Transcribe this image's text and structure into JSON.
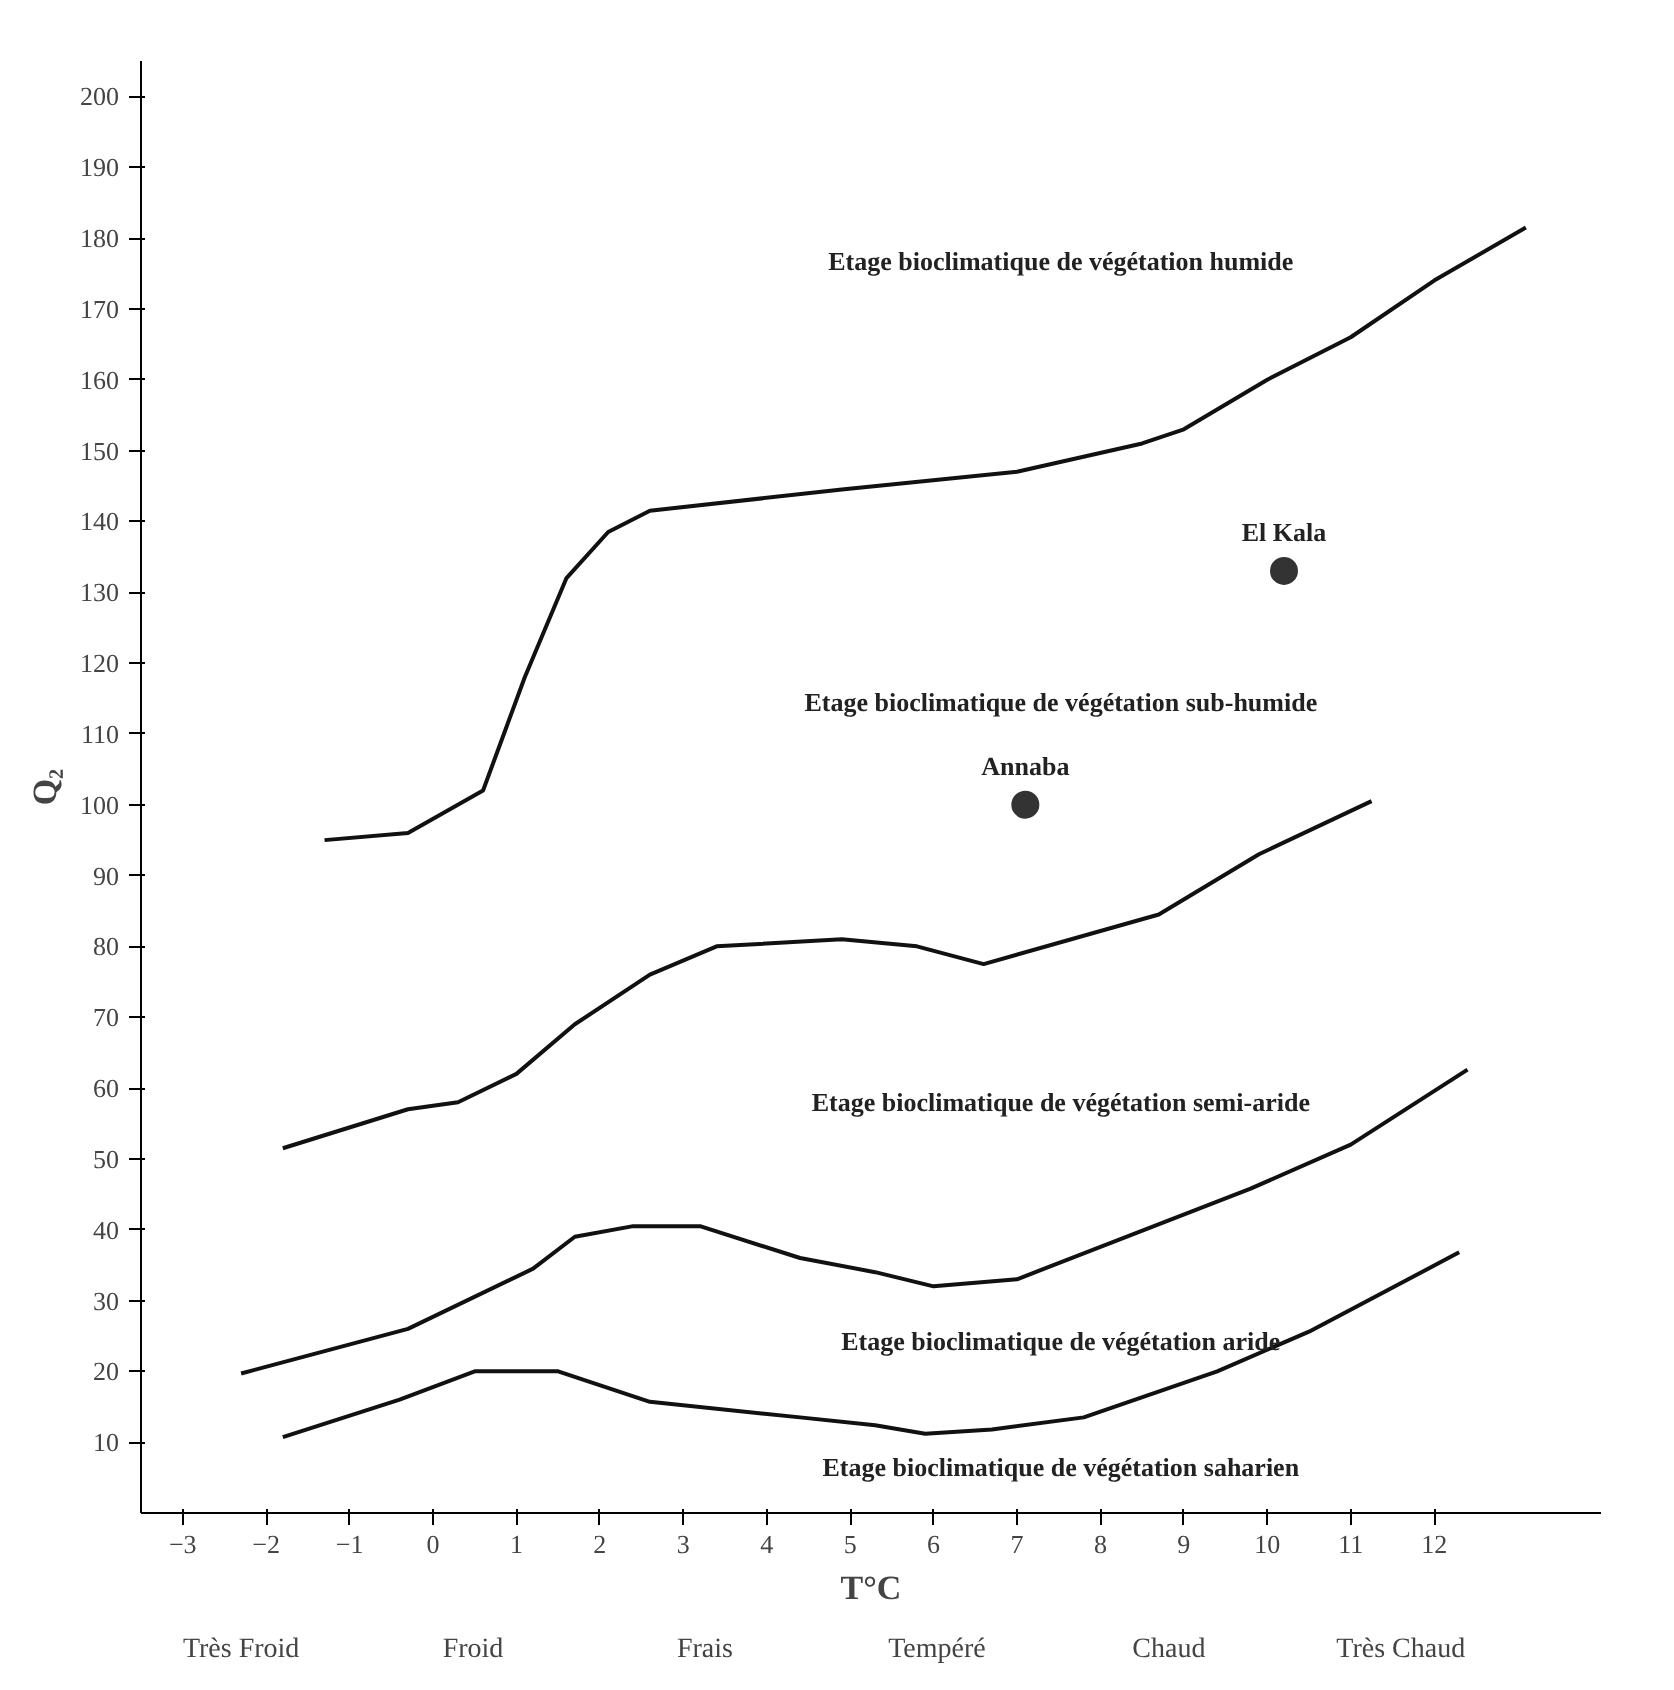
{
  "chart_data": {
    "type": "line",
    "xlabel": "T°C",
    "ylabel": "Q₂",
    "xlim": [
      -3.5,
      14
    ],
    "ylim": [
      0,
      205
    ],
    "xticks": [
      -3,
      -2,
      -1,
      0,
      1,
      2,
      3,
      4,
      5,
      6,
      7,
      8,
      9,
      10,
      11,
      12
    ],
    "yticks": [
      10,
      20,
      30,
      40,
      50,
      60,
      70,
      80,
      90,
      100,
      110,
      120,
      130,
      140,
      150,
      160,
      170,
      180,
      190,
      200
    ],
    "grid": false,
    "legend": false,
    "marker": "none",
    "line_style": "solid",
    "series": [
      {
        "color": "#111111",
        "x": [
          -1.3,
          -0.3,
          0.6,
          1.1,
          1.6,
          2.1,
          2.6,
          4.9,
          7.0,
          8.5,
          9.0,
          10.0,
          11.0,
          12.0,
          13.1
        ],
        "values": [
          95,
          96,
          102,
          118,
          132,
          138.5,
          141.5,
          144.5,
          147,
          151,
          153,
          160,
          166,
          174,
          181.5
        ]
      },
      {
        "color": "#111111",
        "x": [
          -1.8,
          -0.3,
          0.3,
          1.0,
          1.7,
          2.6,
          3.4,
          4.9,
          5.8,
          6.6,
          8.7,
          9.9,
          11.25
        ],
        "values": [
          51.5,
          57,
          58,
          62,
          69,
          76,
          80,
          81,
          80,
          77.5,
          84.5,
          93,
          100.5
        ]
      },
      {
        "color": "#111111",
        "x": [
          -2.3,
          -0.3,
          1.2,
          1.7,
          2.4,
          3.2,
          4.4,
          5.3,
          6.0,
          7.0,
          9.8,
          11.0,
          12.4
        ],
        "values": [
          19.7,
          26,
          34.5,
          39,
          40.5,
          40.5,
          36,
          34,
          32,
          33,
          45.8,
          52,
          62.6
        ]
      },
      {
        "color": "#111111",
        "x": [
          -1.8,
          -0.4,
          0.5,
          1.5,
          2.6,
          4.4,
          5.3,
          5.9,
          6.7,
          7.8,
          9.4,
          10.5,
          12.3
        ],
        "values": [
          10.7,
          16,
          20,
          20,
          15.7,
          13.5,
          12.4,
          11.2,
          11.8,
          13.5,
          20,
          25.6,
          36.8
        ]
      },
      {
        "type": "scatter",
        "name": "El Kala",
        "color": "#333333",
        "marker": "circle",
        "x": [
          10.2
        ],
        "values": [
          133
        ]
      },
      {
        "type": "scatter",
        "name": "Annaba",
        "color": "#333333",
        "marker": "circle",
        "x": [
          7.1
        ],
        "values": [
          100
        ]
      }
    ],
    "annotations": [
      "Etage bioclimatique de végétation humide",
      "Etage bioclimatique de végétation sub-humide",
      "Etage bioclimatique de végétation semi-aride",
      "Etage bioclimatique de végétation aride",
      "Etage bioclimatique de végétation saharien",
      "Très Froid",
      "Froid",
      "Frais",
      "Tempéré",
      "Chaud",
      "Très Chaud"
    ]
  }
}
